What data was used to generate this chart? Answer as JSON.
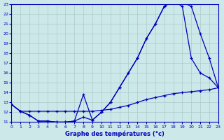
{
  "xlabel": "Graphe des températures (°c)",
  "bg_color": "#cce8e8",
  "grid_color": "#aacccc",
  "line_color": "#0000bb",
  "xmin": 0,
  "xmax": 23,
  "ymin": 11,
  "ymax": 23,
  "yticks": [
    11,
    12,
    13,
    14,
    15,
    16,
    17,
    18,
    19,
    20,
    21,
    22,
    23
  ],
  "xticks": [
    0,
    1,
    2,
    3,
    4,
    5,
    6,
    7,
    8,
    9,
    10,
    11,
    12,
    13,
    14,
    15,
    16,
    17,
    18,
    19,
    20,
    21,
    22,
    23
  ],
  "line1_x": [
    0,
    1,
    2,
    3,
    4,
    5,
    6,
    7,
    8,
    9,
    10,
    11,
    12,
    13,
    14,
    15,
    16,
    17,
    18,
    19,
    20,
    21,
    22,
    23
  ],
  "line1_y": [
    12.8,
    12.1,
    11.7,
    11.1,
    11.1,
    11.0,
    11.0,
    11.1,
    11.5,
    11.2,
    12.0,
    13.0,
    14.5,
    16.0,
    17.5,
    19.5,
    21.0,
    22.8,
    23.3,
    22.8,
    17.5,
    16.0,
    15.5,
    14.5
  ],
  "line2_x": [
    0,
    1,
    2,
    3,
    4,
    5,
    6,
    7,
    8,
    9,
    10,
    11,
    12,
    13,
    14,
    15,
    16,
    17,
    18,
    19,
    20,
    21,
    22,
    23
  ],
  "line2_y": [
    12.8,
    12.1,
    11.7,
    11.1,
    11.1,
    11.0,
    11.0,
    11.1,
    13.8,
    11.2,
    12.0,
    13.0,
    14.5,
    16.0,
    17.5,
    19.5,
    21.0,
    22.8,
    23.3,
    23.2,
    22.8,
    20.0,
    17.5,
    14.5
  ],
  "line3_x": [
    0,
    1,
    2,
    3,
    4,
    5,
    6,
    7,
    8,
    9,
    10,
    11,
    12,
    13,
    14,
    15,
    16,
    17,
    18,
    19,
    20,
    21,
    22,
    23
  ],
  "line3_y": [
    12.8,
    12.1,
    12.1,
    12.1,
    12.1,
    12.1,
    12.1,
    12.1,
    12.1,
    12.1,
    12.2,
    12.3,
    12.5,
    12.7,
    13.0,
    13.3,
    13.5,
    13.7,
    13.9,
    14.0,
    14.1,
    14.2,
    14.3,
    14.5
  ]
}
